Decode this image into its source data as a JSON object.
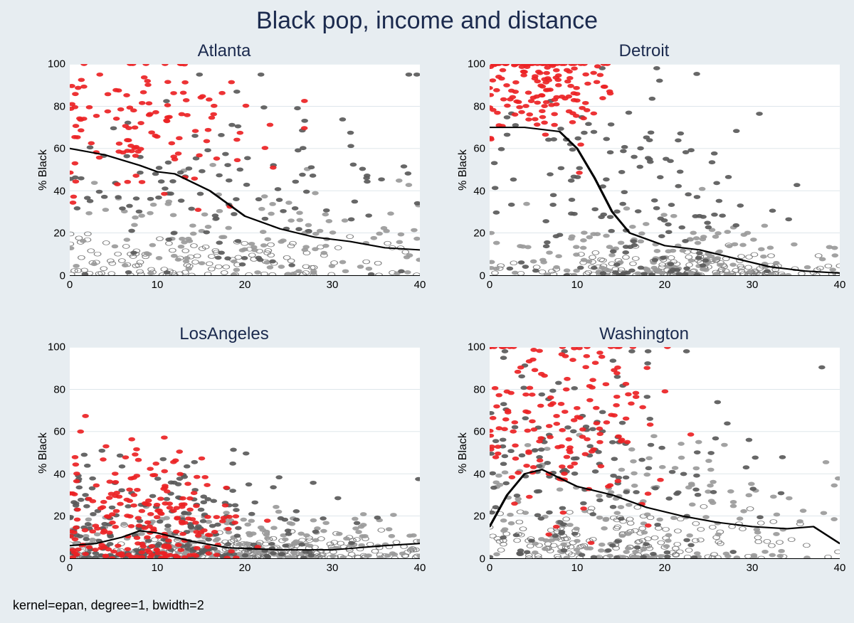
{
  "title": "Black pop, income and distance",
  "note": "kernel=epan, degree=1, bwidth=2",
  "colors": {
    "page_bg": "#e7edf1",
    "plot_bg": "#ffffff",
    "title_color": "#1b2a4e",
    "axis_color": "#000000",
    "grid_color": "#d9e3e8",
    "series_red": "#ec2224",
    "series_darkgray": "#5a5a5a",
    "series_gray": "#9a9a9a",
    "series_open_stroke": "#7a7a7a",
    "smooth_line": "#000000"
  },
  "title_fontsize": 34,
  "panel_title_fontsize": 24,
  "axis_label_fontsize": 16,
  "tick_fontsize": 15,
  "note_fontsize": 18,
  "marker_radius": 4.5,
  "smooth_line_width": 3.2,
  "grid_line_width": 1,
  "xlim": [
    0,
    40
  ],
  "ylim": [
    0,
    100
  ],
  "xticks": [
    0,
    10,
    20,
    30,
    40
  ],
  "yticks": [
    0,
    20,
    40,
    60,
    80,
    100
  ],
  "ylabel": "% Black",
  "series_order": [
    "open",
    "gray",
    "darkgray",
    "red"
  ],
  "seeds": {
    "Atlanta": 11,
    "Detroit": 22,
    "LosAngeles": 33,
    "Washington": 44
  },
  "panels": [
    {
      "title": "Atlanta",
      "n_per_series": 120,
      "smooth": [
        [
          0,
          60
        ],
        [
          4,
          57
        ],
        [
          8,
          52
        ],
        [
          10,
          49
        ],
        [
          12,
          48
        ],
        [
          16,
          40
        ],
        [
          20,
          28
        ],
        [
          24,
          22
        ],
        [
          28,
          18
        ],
        [
          32,
          16
        ],
        [
          36,
          13
        ],
        [
          40,
          12
        ]
      ],
      "distributions": {
        "red": {
          "x_mean": 9,
          "x_sd": 7,
          "y_mean": 78,
          "y_sd": 18,
          "y_floor": 5,
          "y_cap": 100,
          "x_cap": 40
        },
        "darkgray": {
          "x_mean": 18,
          "x_sd": 10,
          "y_mean": 38,
          "y_sd": 22,
          "y_floor": 0,
          "y_cap": 95,
          "x_cap": 40
        },
        "gray": {
          "x_mean": 20,
          "x_sd": 11,
          "y_mean": 18,
          "y_sd": 15,
          "y_floor": 0,
          "y_cap": 70,
          "x_cap": 40
        },
        "open": {
          "x_mean": 15,
          "x_sd": 10,
          "y_mean": 6,
          "y_sd": 6,
          "y_floor": 0,
          "y_cap": 25,
          "x_cap": 40
        }
      }
    },
    {
      "title": "Detroit",
      "n_per_series": 150,
      "smooth": [
        [
          0,
          70
        ],
        [
          4,
          70
        ],
        [
          8,
          68
        ],
        [
          10,
          60
        ],
        [
          12,
          46
        ],
        [
          14,
          30
        ],
        [
          16,
          20
        ],
        [
          20,
          14
        ],
        [
          24,
          12
        ],
        [
          28,
          8
        ],
        [
          32,
          4
        ],
        [
          36,
          2
        ],
        [
          40,
          1
        ]
      ],
      "distributions": {
        "red": {
          "x_mean": 6,
          "x_sd": 4,
          "y_mean": 90,
          "y_sd": 12,
          "y_floor": 10,
          "y_cap": 100,
          "x_cap": 22
        },
        "darkgray": {
          "x_mean": 16,
          "x_sd": 8,
          "y_mean": 30,
          "y_sd": 30,
          "y_floor": 0,
          "y_cap": 98,
          "x_cap": 40
        },
        "gray": {
          "x_mean": 20,
          "x_sd": 9,
          "y_mean": 8,
          "y_sd": 10,
          "y_floor": 0,
          "y_cap": 60,
          "x_cap": 40
        },
        "open": {
          "x_mean": 22,
          "x_sd": 10,
          "y_mean": 3,
          "y_sd": 4,
          "y_floor": 0,
          "y_cap": 20,
          "x_cap": 40
        }
      }
    },
    {
      "title": "LosAngeles",
      "n_per_series": 220,
      "smooth": [
        [
          0,
          6
        ],
        [
          3,
          7
        ],
        [
          6,
          10
        ],
        [
          8,
          13
        ],
        [
          10,
          12
        ],
        [
          14,
          8
        ],
        [
          18,
          5
        ],
        [
          24,
          4
        ],
        [
          30,
          4
        ],
        [
          36,
          6
        ],
        [
          40,
          7
        ]
      ],
      "distributions": {
        "red": {
          "x_mean": 8,
          "x_sd": 5,
          "y_mean": 18,
          "y_sd": 18,
          "y_floor": 0,
          "y_cap": 80,
          "x_cap": 40
        },
        "darkgray": {
          "x_mean": 12,
          "x_sd": 9,
          "y_mean": 14,
          "y_sd": 18,
          "y_floor": 0,
          "y_cap": 90,
          "x_cap": 40
        },
        "gray": {
          "x_mean": 18,
          "x_sd": 11,
          "y_mean": 6,
          "y_sd": 8,
          "y_floor": 0,
          "y_cap": 50,
          "x_cap": 40
        },
        "open": {
          "x_mean": 20,
          "x_sd": 12,
          "y_mean": 3,
          "y_sd": 4,
          "y_floor": 0,
          "y_cap": 20,
          "x_cap": 40
        }
      }
    },
    {
      "title": "Washington",
      "n_per_series": 160,
      "smooth": [
        [
          0,
          15
        ],
        [
          2,
          30
        ],
        [
          4,
          40
        ],
        [
          6,
          42
        ],
        [
          8,
          38
        ],
        [
          10,
          34
        ],
        [
          14,
          30
        ],
        [
          18,
          24
        ],
        [
          22,
          20
        ],
        [
          26,
          17
        ],
        [
          30,
          15
        ],
        [
          34,
          14
        ],
        [
          37,
          15
        ],
        [
          40,
          7
        ]
      ],
      "distributions": {
        "red": {
          "x_mean": 8,
          "x_sd": 6,
          "y_mean": 65,
          "y_sd": 25,
          "y_floor": 5,
          "y_cap": 100,
          "x_cap": 36
        },
        "darkgray": {
          "x_mean": 12,
          "x_sd": 9,
          "y_mean": 40,
          "y_sd": 28,
          "y_floor": 0,
          "y_cap": 98,
          "x_cap": 40
        },
        "gray": {
          "x_mean": 18,
          "x_sd": 11,
          "y_mean": 18,
          "y_sd": 18,
          "y_floor": 0,
          "y_cap": 80,
          "x_cap": 40
        },
        "open": {
          "x_mean": 14,
          "x_sd": 10,
          "y_mean": 7,
          "y_sd": 7,
          "y_floor": 0,
          "y_cap": 25,
          "x_cap": 40
        }
      }
    }
  ]
}
